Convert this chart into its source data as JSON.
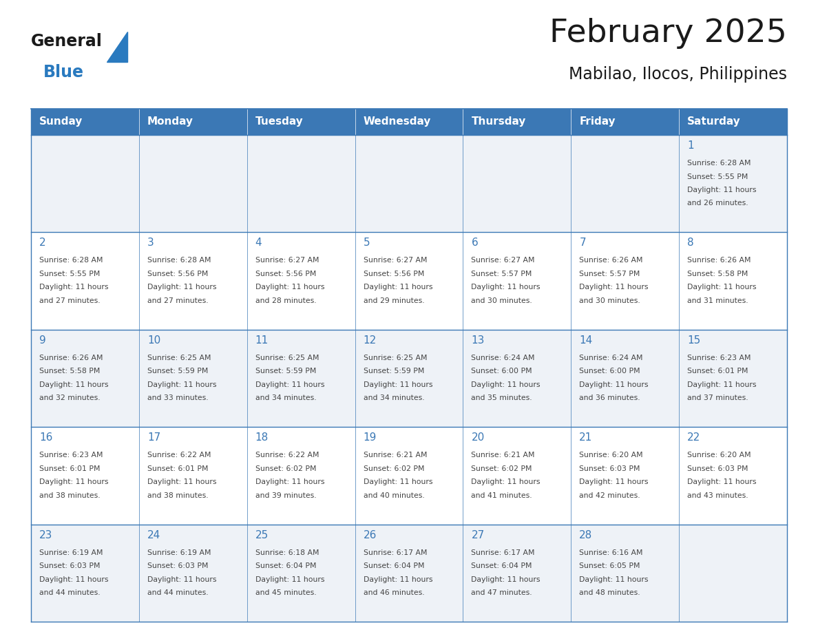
{
  "title": "February 2025",
  "subtitle": "Mabilao, Ilocos, Philippines",
  "days_of_week": [
    "Sunday",
    "Monday",
    "Tuesday",
    "Wednesday",
    "Thursday",
    "Friday",
    "Saturday"
  ],
  "header_bg": "#3b78b5",
  "header_text": "#ffffff",
  "cell_bg_odd": "#eef2f7",
  "cell_bg_even": "#ffffff",
  "cell_border": "#3b78b5",
  "day_number_color": "#3b78b5",
  "text_color": "#444444",
  "title_color": "#1a1a1a",
  "logo_general_color": "#1a1a1a",
  "logo_blue_color": "#2a7abf",
  "calendar_data": [
    [
      {
        "day": null,
        "sunrise": null,
        "sunset": null,
        "daylight": null
      },
      {
        "day": null,
        "sunrise": null,
        "sunset": null,
        "daylight": null
      },
      {
        "day": null,
        "sunrise": null,
        "sunset": null,
        "daylight": null
      },
      {
        "day": null,
        "sunrise": null,
        "sunset": null,
        "daylight": null
      },
      {
        "day": null,
        "sunrise": null,
        "sunset": null,
        "daylight": null
      },
      {
        "day": null,
        "sunrise": null,
        "sunset": null,
        "daylight": null
      },
      {
        "day": 1,
        "sunrise": "6:28 AM",
        "sunset": "5:55 PM",
        "daylight": "11 hours and 26 minutes."
      }
    ],
    [
      {
        "day": 2,
        "sunrise": "6:28 AM",
        "sunset": "5:55 PM",
        "daylight": "11 hours and 27 minutes."
      },
      {
        "day": 3,
        "sunrise": "6:28 AM",
        "sunset": "5:56 PM",
        "daylight": "11 hours and 27 minutes."
      },
      {
        "day": 4,
        "sunrise": "6:27 AM",
        "sunset": "5:56 PM",
        "daylight": "11 hours and 28 minutes."
      },
      {
        "day": 5,
        "sunrise": "6:27 AM",
        "sunset": "5:56 PM",
        "daylight": "11 hours and 29 minutes."
      },
      {
        "day": 6,
        "sunrise": "6:27 AM",
        "sunset": "5:57 PM",
        "daylight": "11 hours and 30 minutes."
      },
      {
        "day": 7,
        "sunrise": "6:26 AM",
        "sunset": "5:57 PM",
        "daylight": "11 hours and 30 minutes."
      },
      {
        "day": 8,
        "sunrise": "6:26 AM",
        "sunset": "5:58 PM",
        "daylight": "11 hours and 31 minutes."
      }
    ],
    [
      {
        "day": 9,
        "sunrise": "6:26 AM",
        "sunset": "5:58 PM",
        "daylight": "11 hours and 32 minutes."
      },
      {
        "day": 10,
        "sunrise": "6:25 AM",
        "sunset": "5:59 PM",
        "daylight": "11 hours and 33 minutes."
      },
      {
        "day": 11,
        "sunrise": "6:25 AM",
        "sunset": "5:59 PM",
        "daylight": "11 hours and 34 minutes."
      },
      {
        "day": 12,
        "sunrise": "6:25 AM",
        "sunset": "5:59 PM",
        "daylight": "11 hours and 34 minutes."
      },
      {
        "day": 13,
        "sunrise": "6:24 AM",
        "sunset": "6:00 PM",
        "daylight": "11 hours and 35 minutes."
      },
      {
        "day": 14,
        "sunrise": "6:24 AM",
        "sunset": "6:00 PM",
        "daylight": "11 hours and 36 minutes."
      },
      {
        "day": 15,
        "sunrise": "6:23 AM",
        "sunset": "6:01 PM",
        "daylight": "11 hours and 37 minutes."
      }
    ],
    [
      {
        "day": 16,
        "sunrise": "6:23 AM",
        "sunset": "6:01 PM",
        "daylight": "11 hours and 38 minutes."
      },
      {
        "day": 17,
        "sunrise": "6:22 AM",
        "sunset": "6:01 PM",
        "daylight": "11 hours and 38 minutes."
      },
      {
        "day": 18,
        "sunrise": "6:22 AM",
        "sunset": "6:02 PM",
        "daylight": "11 hours and 39 minutes."
      },
      {
        "day": 19,
        "sunrise": "6:21 AM",
        "sunset": "6:02 PM",
        "daylight": "11 hours and 40 minutes."
      },
      {
        "day": 20,
        "sunrise": "6:21 AM",
        "sunset": "6:02 PM",
        "daylight": "11 hours and 41 minutes."
      },
      {
        "day": 21,
        "sunrise": "6:20 AM",
        "sunset": "6:03 PM",
        "daylight": "11 hours and 42 minutes."
      },
      {
        "day": 22,
        "sunrise": "6:20 AM",
        "sunset": "6:03 PM",
        "daylight": "11 hours and 43 minutes."
      }
    ],
    [
      {
        "day": 23,
        "sunrise": "6:19 AM",
        "sunset": "6:03 PM",
        "daylight": "11 hours and 44 minutes."
      },
      {
        "day": 24,
        "sunrise": "6:19 AM",
        "sunset": "6:03 PM",
        "daylight": "11 hours and 44 minutes."
      },
      {
        "day": 25,
        "sunrise": "6:18 AM",
        "sunset": "6:04 PM",
        "daylight": "11 hours and 45 minutes."
      },
      {
        "day": 26,
        "sunrise": "6:17 AM",
        "sunset": "6:04 PM",
        "daylight": "11 hours and 46 minutes."
      },
      {
        "day": 27,
        "sunrise": "6:17 AM",
        "sunset": "6:04 PM",
        "daylight": "11 hours and 47 minutes."
      },
      {
        "day": 28,
        "sunrise": "6:16 AM",
        "sunset": "6:05 PM",
        "daylight": "11 hours and 48 minutes."
      },
      {
        "day": null,
        "sunrise": null,
        "sunset": null,
        "daylight": null
      }
    ]
  ],
  "fig_width": 11.88,
  "fig_height": 9.18,
  "dpi": 100
}
